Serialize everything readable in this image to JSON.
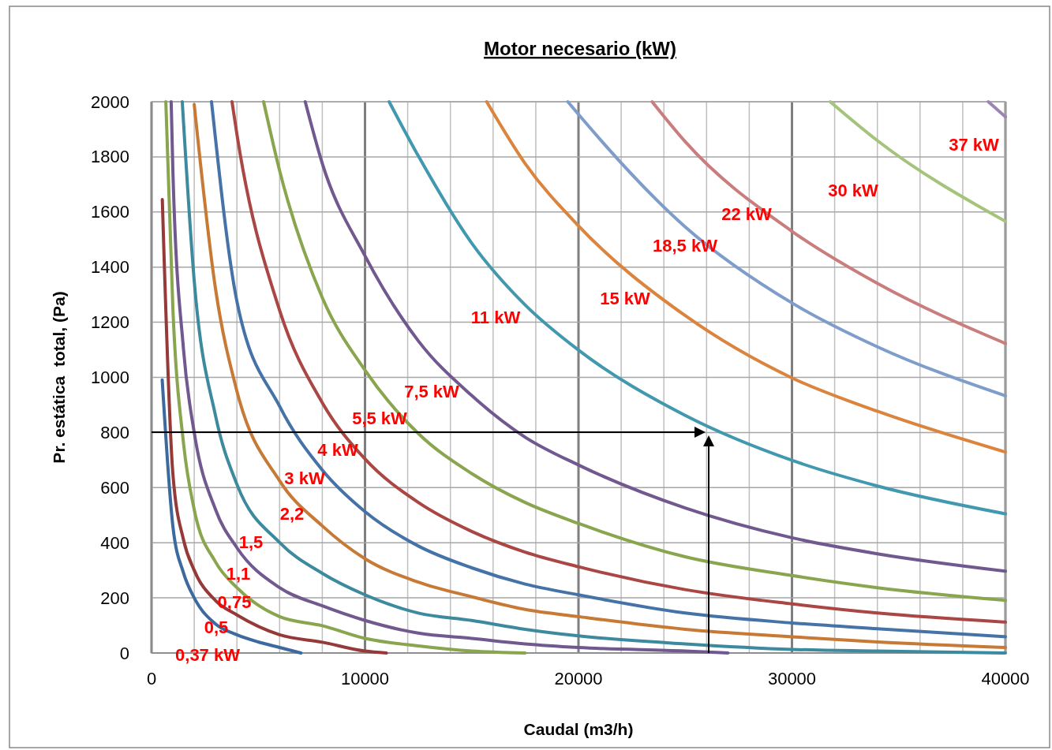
{
  "chart_data": {
    "type": "line",
    "title": "Motor necesario (kW)",
    "xlabel": "Caudal (m3/h)",
    "ylabel": "Pr. estática  total, (Pa)",
    "xlim": [
      0,
      40000
    ],
    "ylim": [
      0,
      2000
    ],
    "xticks": [
      0,
      {
        "value": 2000,
        "label": null
      },
      {
        "value": 4000,
        "label": null
      },
      {
        "value": 6000,
        "label": null
      },
      {
        "value": 8000,
        "label": null
      },
      10000,
      {
        "value": 12000,
        "label": null
      },
      {
        "value": 14000,
        "label": null
      },
      {
        "value": 16000,
        "label": null
      },
      {
        "value": 18000,
        "label": null
      },
      20000,
      {
        "value": 22000,
        "label": null
      },
      {
        "value": 24000,
        "label": null
      },
      {
        "value": 26000,
        "label": null
      },
      {
        "value": 28000,
        "label": null
      },
      30000,
      {
        "value": 32000,
        "label": null
      },
      {
        "value": 34000,
        "label": null
      },
      {
        "value": 36000,
        "label": null
      },
      {
        "value": 38000,
        "label": null
      },
      40000
    ],
    "yticks": [
      0,
      200,
      400,
      600,
      800,
      1000,
      1200,
      1400,
      1600,
      1800,
      2000
    ],
    "grid": true,
    "line_style": "solid",
    "series": [
      {
        "name": "0,37 kW",
        "color": "#3d6a9e",
        "x": [
          500,
          1000,
          1500,
          2000,
          3000,
          4000,
          5000,
          6000,
          7000
        ],
        "values": [
          991,
          460,
          290,
          200,
          105,
          66,
          40,
          20,
          0
        ]
      },
      {
        "name": "0,5",
        "color": "#953a38",
        "x": [
          505,
          1000,
          1500,
          2000,
          3000,
          4000,
          6000,
          8000,
          10000,
          11000
        ],
        "values": [
          1645,
          650,
          410,
          300,
          190,
          138,
          66,
          39,
          7,
          0
        ]
      },
      {
        "name": "0,75",
        "color": "#89a54e",
        "x": [
          670,
          1000,
          1500,
          2000,
          3000,
          4000,
          6000,
          8000,
          10000,
          12500,
          15000,
          17500
        ],
        "values": [
          2000,
          1250,
          760,
          520,
          330,
          237,
          132,
          99,
          53,
          26,
          7,
          0
        ]
      },
      {
        "name": "1,1",
        "color": "#71588f",
        "x": [
          920,
          1000,
          1500,
          2000,
          3000,
          4000,
          6000,
          8000,
          10000,
          12500,
          15000,
          17500,
          20000,
          25000,
          27000
        ],
        "values": [
          2000,
          1750,
          1100,
          800,
          520,
          382,
          237,
          171,
          118,
          72,
          53,
          33,
          20,
          7,
          0
        ]
      },
      {
        "name": "1,5",
        "color": "#3d8a9e",
        "x": [
          1440,
          2000,
          3000,
          4000,
          6000,
          8000,
          10000,
          12500,
          15000,
          17500,
          20000,
          25000,
          30000,
          34000,
          40000
        ],
        "values": [
          2000,
          1350,
          860,
          612,
          401,
          289,
          211,
          145,
          118,
          86,
          62,
          33,
          13,
          7,
          0
        ]
      },
      {
        "name": "2,2",
        "color": "#c77a35",
        "x": [
          2000,
          3000,
          4000,
          6000,
          8000,
          10000,
          12500,
          15000,
          17500,
          20000,
          25000,
          30000,
          34000,
          40000
        ],
        "values": [
          1990,
          1320,
          950,
          625,
          461,
          342,
          257,
          204,
          158,
          132,
          86,
          59,
          40,
          20
        ]
      },
      {
        "name": "3 kW",
        "color": "#4572a7",
        "x": [
          2810,
          4000,
          6000,
          8000,
          10000,
          12500,
          15000,
          17500,
          20000,
          25000,
          30000,
          34000,
          40000
        ],
        "values": [
          2000,
          1276,
          895,
          664,
          513,
          388,
          309,
          250,
          211,
          145,
          109,
          88,
          59
        ]
      },
      {
        "name": "4 kW",
        "color": "#aa4643",
        "x": [
          3770,
          4000,
          6000,
          8000,
          10000,
          12500,
          15000,
          17500,
          20000,
          25000,
          30000,
          34000,
          40000
        ],
        "values": [
          2000,
          1882,
          1243,
          908,
          704,
          546,
          441,
          366,
          313,
          230,
          178,
          145,
          112
        ]
      },
      {
        "name": "5,5 kW",
        "color": "#89a54e",
        "x": [
          5250,
          6000,
          8000,
          10000,
          12500,
          15000,
          17500,
          20000,
          25000,
          30000,
          34000,
          40000
        ],
        "values": [
          2000,
          1750,
          1289,
          1026,
          796,
          651,
          546,
          470,
          349,
          281,
          237,
          191
        ]
      },
      {
        "name": "7,5 kW",
        "color": "#71588f",
        "x": [
          7200,
          8000,
          10000,
          12500,
          15000,
          17500,
          20000,
          25000,
          30000,
          34000,
          40000
        ],
        "values": [
          2000,
          1776,
          1441,
          1132,
          934,
          783,
          682,
          526,
          418,
          360,
          297
        ]
      },
      {
        "name": "11 kW",
        "color": "#4198af",
        "x": [
          11130,
          12500,
          15000,
          17500,
          20000,
          25000,
          30000,
          34000,
          40000
        ],
        "values": [
          2000,
          1803,
          1487,
          1263,
          1099,
          862,
          699,
          606,
          505
        ]
      },
      {
        "name": "15 kW",
        "color": "#db843d",
        "x": [
          15700,
          17500,
          20000,
          25000,
          30000,
          34000,
          40000
        ],
        "values": [
          2000,
          1776,
          1550,
          1224,
          998,
          877,
          729
        ]
      },
      {
        "name": "18,5 kW",
        "color": "#7f9dcb",
        "x": [
          19500,
          20000,
          25000,
          30000,
          34000,
          40000
        ],
        "values": [
          2000,
          1954,
          1546,
          1270,
          1111,
          933
        ]
      },
      {
        "name": "22 kW",
        "color": "#c97d7c",
        "x": [
          23450,
          25000,
          30000,
          34000,
          40000
        ],
        "values": [
          2000,
          1855,
          1530,
          1341,
          1123
        ]
      },
      {
        "name": "30 kW",
        "color": "#a4c47c",
        "x": [
          31790,
          34000,
          40000
        ],
        "values": [
          2000,
          1859,
          1566
        ]
      },
      {
        "name": "37 kW",
        "color": "#9a86b5",
        "x": [
          39200,
          40000
        ],
        "values": [
          2000,
          1945
        ]
      }
    ]
  }
}
